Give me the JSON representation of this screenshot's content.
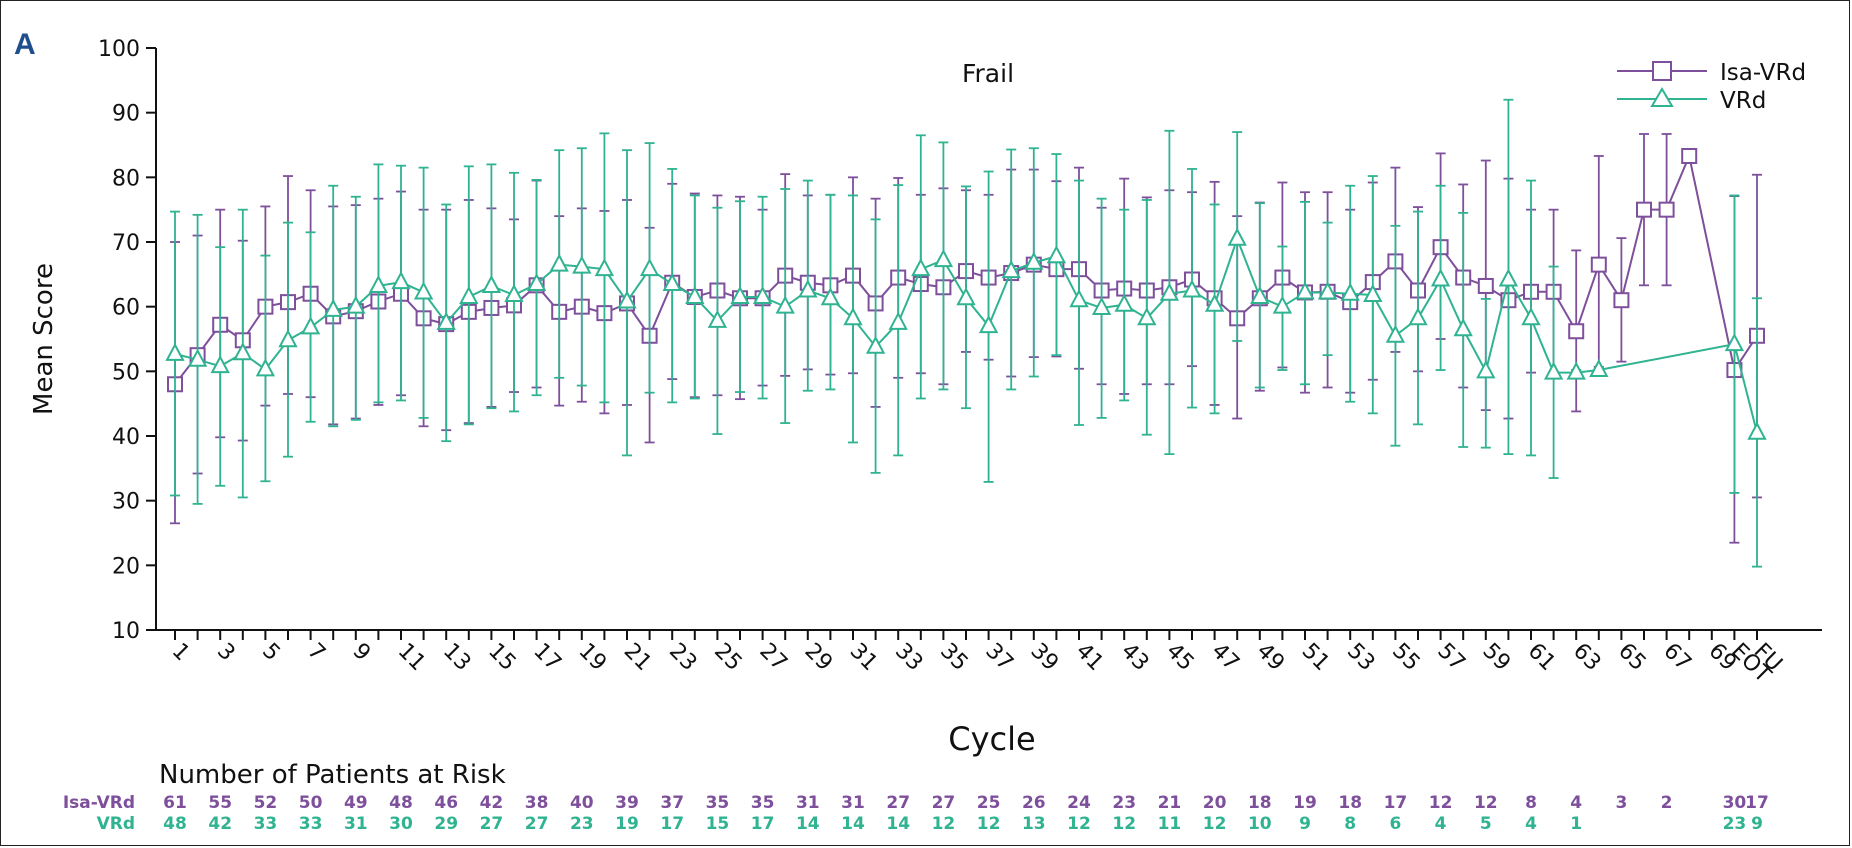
{
  "panel_label": "A",
  "colors": {
    "isa": "#7e4f9b",
    "vrd": "#2fb391",
    "axis": "#111111",
    "panel_label": "#1f4e8c"
  },
  "chart_data": {
    "type": "line",
    "title": "Frail",
    "xlabel": "Cycle",
    "ylabel": "Mean Score",
    "ylim": [
      10,
      100
    ],
    "yticks": [
      10,
      20,
      30,
      40,
      50,
      60,
      70,
      80,
      90,
      100
    ],
    "grid": false,
    "legend_position": "top-right",
    "x_categories": [
      "1",
      "2",
      "3",
      "4",
      "5",
      "6",
      "7",
      "8",
      "9",
      "10",
      "11",
      "12",
      "13",
      "14",
      "15",
      "16",
      "17",
      "18",
      "19",
      "20",
      "21",
      "22",
      "23",
      "24",
      "25",
      "26",
      "27",
      "28",
      "29",
      "30",
      "31",
      "32",
      "33",
      "34",
      "35",
      "36",
      "37",
      "38",
      "39",
      "40",
      "41",
      "42",
      "43",
      "44",
      "45",
      "46",
      "47",
      "48",
      "49",
      "50",
      "51",
      "52",
      "53",
      "54",
      "55",
      "56",
      "57",
      "58",
      "59",
      "60",
      "61",
      "62",
      "63",
      "64",
      "65",
      "66",
      "67",
      "68",
      "69",
      "EOT",
      "FU"
    ],
    "x_tick_labels": [
      "1",
      "3",
      "5",
      "7",
      "9",
      "11",
      "13",
      "15",
      "17",
      "19",
      "21",
      "23",
      "25",
      "27",
      "29",
      "31",
      "33",
      "35",
      "37",
      "39",
      "41",
      "43",
      "45",
      "47",
      "49",
      "51",
      "53",
      "55",
      "57",
      "59",
      "61",
      "63",
      "65",
      "67",
      "69",
      "EOT",
      "FU"
    ],
    "series": [
      {
        "name": "Isa-VRd",
        "marker": "square",
        "x": [
          "1",
          "2",
          "3",
          "4",
          "5",
          "6",
          "7",
          "8",
          "9",
          "10",
          "11",
          "12",
          "13",
          "14",
          "15",
          "16",
          "17",
          "18",
          "19",
          "20",
          "21",
          "22",
          "23",
          "24",
          "25",
          "26",
          "27",
          "28",
          "29",
          "30",
          "31",
          "32",
          "33",
          "34",
          "35",
          "36",
          "37",
          "38",
          "39",
          "40",
          "41",
          "42",
          "43",
          "44",
          "45",
          "46",
          "47",
          "48",
          "49",
          "50",
          "51",
          "52",
          "53",
          "54",
          "55",
          "56",
          "57",
          "58",
          "59",
          "60",
          "61",
          "62",
          "63",
          "64",
          "65",
          "66",
          "67",
          "68",
          "EOT",
          "FU"
        ],
        "mean": [
          48,
          52.5,
          57.2,
          54.8,
          60,
          60.7,
          62,
          58.5,
          59.3,
          60.8,
          62,
          58.2,
          57.3,
          59.2,
          59.8,
          60.2,
          63.3,
          59.2,
          60,
          59,
          60.5,
          55.5,
          63.7,
          61.5,
          62.5,
          61.3,
          61.3,
          64.8,
          63.7,
          63.3,
          64.8,
          60.5,
          64.5,
          63.5,
          63,
          65.5,
          64.5,
          65.2,
          66.5,
          65.8,
          65.8,
          62.5,
          62.8,
          62.5,
          63,
          64.2,
          61.3,
          58.2,
          61.3,
          64.5,
          62.2,
          62.3,
          60.7,
          63.8,
          67,
          62.5,
          69.2,
          64.5,
          63.2,
          61,
          62.3,
          62.3,
          56.2,
          66.5,
          61,
          75,
          75,
          83.3,
          50.2,
          55.5
        ],
        "lower": [
          26.5,
          34.2,
          39.8,
          39.3,
          44.7,
          46.5,
          46,
          41.8,
          42.7,
          44.8,
          46.3,
          41.5,
          40.9,
          42,
          44.5,
          46.8,
          47.5,
          44.7,
          45.3,
          43.5,
          44.8,
          39,
          48.8,
          46,
          46.3,
          45.7,
          47.8,
          49.3,
          50.3,
          49.5,
          49.7,
          44.5,
          49,
          49.7,
          48,
          53,
          51.8,
          49.2,
          52.2,
          52.3,
          50.4,
          48,
          46.5,
          48,
          48,
          50.8,
          44.8,
          42.7,
          47,
          50.6,
          46.7,
          47.5,
          46.7,
          48.7,
          53,
          50,
          55,
          47.5,
          44,
          42.7,
          49.8,
          49.8,
          43.8,
          50.7,
          51.5,
          63.3,
          63.3,
          83.3,
          23.5,
          30.5
        ],
        "upper": [
          70,
          71,
          75,
          70.2,
          75.5,
          80.2,
          78,
          75.5,
          75.7,
          76.7,
          77.8,
          75,
          75,
          76.5,
          75.2,
          73.5,
          79.5,
          74,
          75.2,
          74.8,
          76.5,
          72.2,
          79,
          77.5,
          77.2,
          77,
          75,
          80.5,
          77.2,
          77.3,
          80,
          76.7,
          79.9,
          77.3,
          78.3,
          78,
          77.3,
          81.2,
          81.2,
          79.4,
          81.5,
          75.3,
          79.8,
          76.9,
          78,
          77.7,
          79.3,
          74,
          76.1,
          79.2,
          77.7,
          77.7,
          75,
          79.2,
          81.5,
          75.4,
          83.7,
          78.9,
          82.6,
          79.8,
          75,
          75,
          68.7,
          83.3,
          70.6,
          86.7,
          86.7,
          83.3,
          77.1,
          80.4
        ]
      },
      {
        "name": "VRd",
        "marker": "triangle",
        "x": [
          "1",
          "2",
          "3",
          "4",
          "5",
          "6",
          "7",
          "8",
          "9",
          "10",
          "11",
          "12",
          "13",
          "14",
          "15",
          "16",
          "17",
          "18",
          "19",
          "20",
          "21",
          "22",
          "23",
          "24",
          "25",
          "26",
          "27",
          "28",
          "29",
          "30",
          "31",
          "32",
          "33",
          "34",
          "35",
          "36",
          "37",
          "38",
          "39",
          "40",
          "41",
          "42",
          "43",
          "44",
          "45",
          "46",
          "47",
          "48",
          "49",
          "50",
          "51",
          "52",
          "53",
          "54",
          "55",
          "56",
          "57",
          "58",
          "59",
          "60",
          "61",
          "62",
          "63",
          "64",
          "EOT",
          "FU"
        ],
        "mean": [
          52.7,
          51.8,
          50.8,
          52.8,
          50.3,
          54.8,
          56.8,
          59.5,
          60,
          63.2,
          63.8,
          62.2,
          57.5,
          61.5,
          63.2,
          61.8,
          63.5,
          66.5,
          66.2,
          65.8,
          60.8,
          65.8,
          63.5,
          61.5,
          57.8,
          61.5,
          61.5,
          60,
          62.5,
          61.3,
          58.2,
          53.8,
          57.5,
          65.8,
          67.2,
          61.3,
          57,
          65.5,
          66.8,
          67.8,
          61,
          59.8,
          60.3,
          58.2,
          62,
          62.5,
          60.3,
          70.5,
          61.5,
          60,
          62.2,
          62.2,
          62,
          61.8,
          55.5,
          58.2,
          64.2,
          56.5,
          50,
          64.2,
          58.2,
          49.8,
          49.8,
          50.2,
          54.2,
          40.5
        ],
        "lower": [
          30.8,
          29.5,
          32.3,
          30.5,
          33,
          36.8,
          42.2,
          41.5,
          42.5,
          45.2,
          45.5,
          42.8,
          39.2,
          41.8,
          44.3,
          43.8,
          46.3,
          49,
          47.8,
          45.2,
          37,
          46.7,
          45.2,
          45.8,
          40.3,
          46.8,
          45.8,
          42,
          47,
          47.2,
          39,
          34.3,
          37,
          45.8,
          47.2,
          44.3,
          32.9,
          47.2,
          49.2,
          52.5,
          41.7,
          42.8,
          45.5,
          40.2,
          37.2,
          44.4,
          43.5,
          54.7,
          47.5,
          50.2,
          48,
          52.5,
          45.3,
          43.5,
          38.5,
          41.8,
          50.2,
          38.3,
          38.2,
          37.2,
          37,
          33.5,
          50.2,
          50.2,
          31.2,
          19.8
        ],
        "upper": [
          74.7,
          74.2,
          69.2,
          75,
          67.9,
          73,
          71.5,
          78.7,
          77,
          82,
          81.8,
          81.5,
          75.8,
          81.7,
          82,
          80.7,
          79.6,
          84.2,
          84.5,
          86.8,
          84.2,
          85.3,
          81.3,
          77.2,
          75.3,
          76.3,
          77,
          78.2,
          79.5,
          77.3,
          77.2,
          73.5,
          78.8,
          86.5,
          85.4,
          78.6,
          80.9,
          84.3,
          84.5,
          83.6,
          79.5,
          76.7,
          75,
          76.5,
          87.2,
          81.3,
          75.8,
          87,
          76,
          69.3,
          76.2,
          73,
          78.7,
          80.2,
          72.5,
          74.7,
          78.7,
          74.5,
          61.2,
          92,
          79.5,
          66.2,
          50.2,
          50.2,
          77.2,
          61.3
        ]
      }
    ],
    "at_risk": {
      "title": "Number of Patients at Risk",
      "cycles": [
        "1",
        "3",
        "5",
        "7",
        "9",
        "11",
        "13",
        "15",
        "17",
        "19",
        "21",
        "23",
        "25",
        "27",
        "29",
        "31",
        "33",
        "35",
        "37",
        "39",
        "41",
        "43",
        "45",
        "47",
        "49",
        "51",
        "53",
        "55",
        "57",
        "59",
        "61",
        "63",
        "65",
        "67",
        "69",
        "EOT",
        "FU"
      ],
      "rows": [
        {
          "label": "Isa-VRd",
          "counts": [
            "61",
            "55",
            "52",
            "50",
            "49",
            "48",
            "46",
            "42",
            "38",
            "40",
            "39",
            "37",
            "35",
            "35",
            "31",
            "31",
            "27",
            "27",
            "25",
            "26",
            "24",
            "23",
            "21",
            "20",
            "18",
            "19",
            "18",
            "17",
            "12",
            "12",
            "8",
            "4",
            "3",
            "2",
            "",
            "30",
            "17"
          ]
        },
        {
          "label": "VRd",
          "counts": [
            "48",
            "42",
            "33",
            "33",
            "31",
            "30",
            "29",
            "27",
            "27",
            "23",
            "19",
            "17",
            "15",
            "17",
            "14",
            "14",
            "14",
            "12",
            "12",
            "13",
            "12",
            "12",
            "11",
            "12",
            "10",
            "9",
            "8",
            "6",
            "4",
            "5",
            "4",
            "1",
            "",
            "",
            "",
            "23",
            "9"
          ]
        }
      ]
    }
  }
}
